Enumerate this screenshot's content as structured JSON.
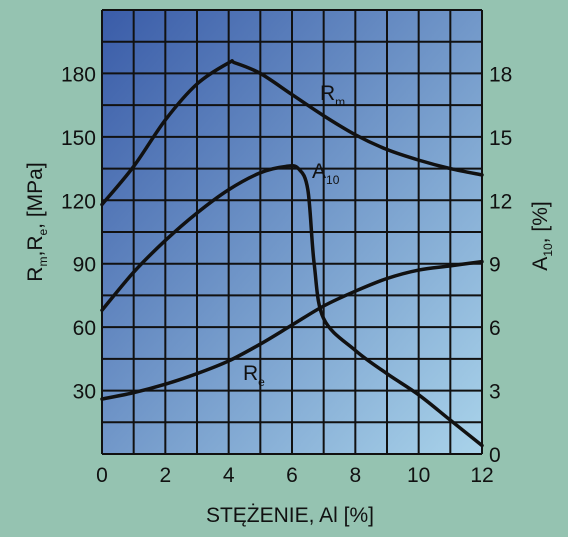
{
  "chart_data": {
    "type": "line",
    "xlabel": "STĘŻENIE, Al [%]",
    "ylabel_left": {
      "parts": [
        "R",
        "m",
        ",R",
        "e",
        ", [MPa]"
      ]
    },
    "ylabel_right": {
      "parts": [
        "A",
        "10",
        ", [%]"
      ]
    },
    "x_ticks": [
      "0",
      "2",
      "4",
      "6",
      "8",
      "10",
      "12"
    ],
    "y_left_ticks": [
      "30",
      "60",
      "90",
      "120",
      "150",
      "180"
    ],
    "y_right_ticks": [
      "0",
      "3",
      "6",
      "9",
      "12",
      "15",
      "18"
    ],
    "xlim": [
      0,
      12
    ],
    "ylim_left": [
      0,
      210
    ],
    "ylim_right": [
      0,
      21
    ],
    "grid": true,
    "colors": {
      "plot_top_left": "#3a5ca8",
      "plot_bottom_right": "#a9d3ea",
      "grid": "#111111",
      "curve": "#111111",
      "frame_bg": "#95c3b1"
    },
    "series": [
      {
        "name": "Rm",
        "label_main": "R",
        "label_sub": "m",
        "axis": "left",
        "x": [
          0,
          1,
          2,
          3,
          4,
          4.2,
          5,
          6,
          7,
          8,
          9,
          10,
          11,
          12
        ],
        "y": [
          118,
          136,
          158,
          175,
          185,
          185,
          180,
          170,
          160,
          151,
          144,
          139,
          135,
          132
        ]
      },
      {
        "name": "A10",
        "label_main": "A",
        "label_sub": "10",
        "axis": "right",
        "x": [
          0,
          1,
          2,
          3,
          4,
          5,
          5.8,
          6.2,
          6.5,
          6.7,
          7,
          8,
          9,
          10,
          11,
          12
        ],
        "y": [
          6.8,
          8.6,
          10.1,
          11.4,
          12.5,
          13.3,
          13.6,
          13.5,
          12.5,
          9.0,
          6.4,
          4.9,
          3.8,
          2.8,
          1.6,
          0.4
        ]
      },
      {
        "name": "Re",
        "label_main": "R",
        "label_sub": "e",
        "axis": "left",
        "x": [
          0,
          1,
          2,
          3,
          4,
          5,
          6,
          7,
          8,
          9,
          10,
          11,
          12
        ],
        "y": [
          26,
          29,
          33,
          38,
          44,
          52,
          61,
          70,
          77,
          83,
          87,
          89,
          91
        ]
      }
    ]
  }
}
